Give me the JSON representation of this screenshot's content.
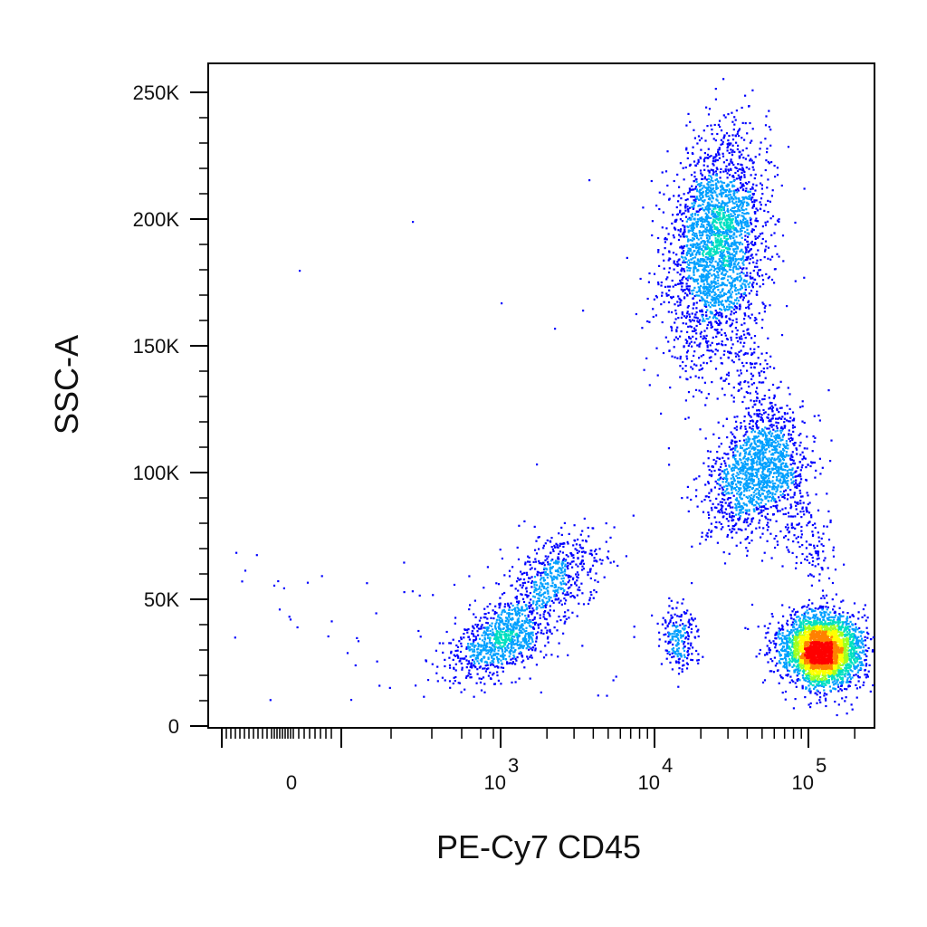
{
  "chart_data": {
    "type": "scatter",
    "style": "density dot plot (flow cytometry)",
    "xlabel": "PE-Cy7  CD45",
    "ylabel": "SSC-A",
    "x_scale": "biexponential (logicle)",
    "xlim": [
      -200,
      200000
    ],
    "ylim": [
      0,
      262144
    ],
    "yticks": [
      {
        "value": 0,
        "label": "0"
      },
      {
        "value": 50000,
        "label": "50K"
      },
      {
        "value": 100000,
        "label": "100K"
      },
      {
        "value": 150000,
        "label": "150K"
      },
      {
        "value": 200000,
        "label": "200K"
      },
      {
        "value": 250000,
        "label": "250K"
      }
    ],
    "xticks": [
      {
        "value": 0,
        "base": "0",
        "exp": ""
      },
      {
        "value": 1000,
        "base": "10",
        "exp": "3"
      },
      {
        "value": 10000,
        "base": "10",
        "exp": "4"
      },
      {
        "value": 100000,
        "base": "10",
        "exp": "5"
      }
    ],
    "colormap": [
      "#0000ff",
      "#00a0ff",
      "#00e0c0",
      "#a0ff20",
      "#ffff00",
      "#ff8000",
      "#ff0000"
    ],
    "populations": [
      {
        "x_center": 25000,
        "y_center": 190000,
        "count": 2600
      },
      {
        "x_center": 45000,
        "y_center": 100000,
        "count": 1300
      },
      {
        "x_center": 140000,
        "y_center": 30000,
        "count": 3200
      },
      {
        "x_center": 1000,
        "y_center": 35000,
        "count": 900
      },
      {
        "x_center": 2300,
        "y_center": 60000,
        "count": 500
      },
      {
        "x_center": 20000,
        "y_center": 35000,
        "count": 220
      }
    ],
    "grid": false,
    "legend": "none"
  }
}
